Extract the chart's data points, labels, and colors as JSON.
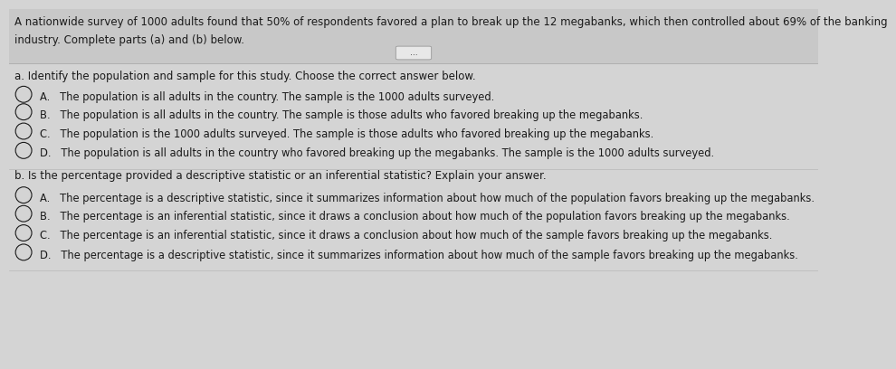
{
  "bg_color": "#d4d4d4",
  "header_bg": "#c8c8c8",
  "header_text_line1": "A nationwide survey of 1000 adults found that 50% of respondents favored a plan to break up the 12 megabanks, which then controlled about 69% of the banking",
  "header_text_line2": "industry. Complete parts (a) and (b) below.",
  "divider_dots": "...",
  "section_a_label": "a. Identify the population and sample for this study. Choose the correct answer below.",
  "section_a_options": [
    "A.   The population is all adults in the country. The sample is the 1000 adults surveyed.",
    "B.   The population is all adults in the country. The sample is those adults who favored breaking up the megabanks.",
    "C.   The population is the 1000 adults surveyed. The sample is those adults who favored breaking up the megabanks.",
    "D.   The population is all adults in the country who favored breaking up the megabanks. The sample is the 1000 adults surveyed."
  ],
  "section_b_label": "b. Is the percentage provided a descriptive statistic or an inferential statistic? Explain your answer.",
  "section_b_options": [
    "A.   The percentage is a descriptive statistic, since it summarizes information about how much of the population favors breaking up the megabanks.",
    "B.   The percentage is an inferential statistic, since it draws a conclusion about how much of the population favors breaking up the megabanks.",
    "C.   The percentage is an inferential statistic, since it draws a conclusion about how much of the sample favors breaking up the megabanks.",
    "D.   The percentage is a descriptive statistic, since it summarizes information about how much of the sample favors breaking up the megabanks."
  ],
  "text_color": "#1a1a1a",
  "font_size_header": 8.5,
  "font_size_body": 8.3,
  "font_size_label": 8.5,
  "fig_width": 8.94,
  "fig_height": 3.88
}
